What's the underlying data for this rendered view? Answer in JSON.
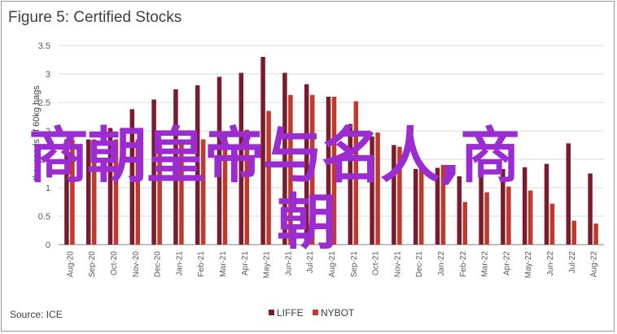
{
  "title": "Figure 5: Certified Stocks",
  "source": "Source: ICE",
  "overlay_text": {
    "line1": "商朝皇帝与名人,商",
    "line2": "朝"
  },
  "colors": {
    "LIFFE": "#7a1c2e",
    "NYBOT": "#c0392b",
    "overlay": "#9b2cd1"
  },
  "chart_data": {
    "type": "bar",
    "xlabel": "",
    "ylabel": "thousands of 60kg bags",
    "ylim": [
      0,
      3.5
    ],
    "yticks": [
      0,
      0.5,
      1,
      1.5,
      2,
      2.5,
      3,
      3.5
    ],
    "grid": true,
    "legend_position": "bottom",
    "categories": [
      "Aug-20",
      "Sep-20",
      "Oct-20",
      "Nov-20",
      "Dec-20",
      "Jan-21",
      "Feb-21",
      "Mar-21",
      "Apr-21",
      "May-21",
      "Jun-21",
      "Jul-21",
      "Aug-21",
      "Sep-21",
      "Oct-21",
      "Nov-21",
      "Dec-21",
      "Jan-22",
      "Feb-22",
      "Mar-22",
      "Apr-22",
      "May-22",
      "Jun-22",
      "Jul-22",
      "Aug-22"
    ],
    "series": [
      {
        "name": "LIFFE",
        "values": [
          1.85,
          1.85,
          2.05,
          2.38,
          2.55,
          2.73,
          2.8,
          2.95,
          3.02,
          3.3,
          3.02,
          2.82,
          2.6,
          2.12,
          1.9,
          1.75,
          1.33,
          1.35,
          1.2,
          1.3,
          1.33,
          1.36,
          1.42,
          1.78,
          1.25
        ]
      },
      {
        "name": "NYBOT",
        "values": [
          1.85,
          1.85,
          1.85,
          1.85,
          1.85,
          1.85,
          1.85,
          1.93,
          2.02,
          2.35,
          2.63,
          2.63,
          2.6,
          2.52,
          1.97,
          1.72,
          1.33,
          1.4,
          0.75,
          0.92,
          1.02,
          0.95,
          0.72,
          0.42,
          0.37
        ]
      }
    ]
  }
}
